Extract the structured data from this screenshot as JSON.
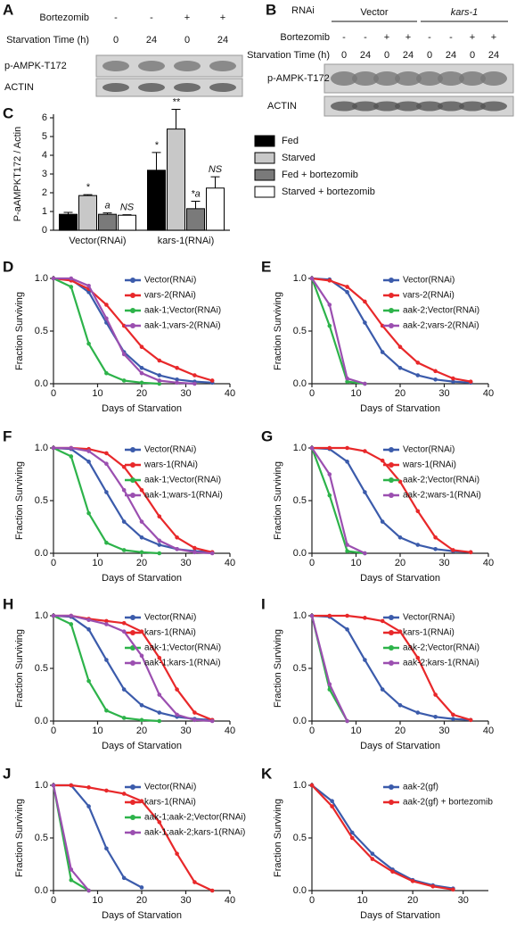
{
  "blots": [
    {
      "label": "A",
      "rows": [
        {
          "label": "Bortezomib",
          "cells": [
            "-",
            "-",
            "+",
            "+"
          ]
        },
        {
          "label": "Starvation Time (h)",
          "cells": [
            "0",
            "24",
            "0",
            "24"
          ]
        }
      ],
      "bands": [
        "p-AMPK-T172",
        "ACTIN"
      ]
    },
    {
      "label": "B",
      "rnai_label": "RNAi",
      "groups": [
        "Vector",
        "kars-1"
      ],
      "rows": [
        {
          "label": "Bortezomib",
          "cells": [
            "-",
            "-",
            "+",
            "+",
            "-",
            "-",
            "+",
            "+"
          ]
        },
        {
          "label": "Starvation Time (h)",
          "cells": [
            "0",
            "24",
            "0",
            "24",
            "0",
            "24",
            "0",
            "24"
          ]
        }
      ],
      "bands": [
        "p-AMPK-T172",
        "ACTIN"
      ]
    }
  ],
  "chart_data": [
    {
      "type": "bar",
      "label": "C",
      "ylabel": "P-aAMPKT172 / Actin",
      "categories": [
        "Vector(RNAi)",
        "kars-1(RNAi)"
      ],
      "ylim": [
        0,
        6
      ],
      "yticks": [
        0,
        1,
        2,
        3,
        4,
        5,
        6
      ],
      "series": [
        {
          "name": "Fed",
          "color": "#000000",
          "values": [
            0.85,
            3.2
          ],
          "errors": [
            0.1,
            0.95
          ],
          "annotations": [
            null,
            "*"
          ]
        },
        {
          "name": "Starved",
          "color": "#c8c8c8",
          "values": [
            1.85,
            5.4
          ],
          "errors": [
            0.05,
            1.05
          ],
          "annotations": [
            "*",
            "**"
          ]
        },
        {
          "name": "Fed + bortezomib",
          "color": "#7a7a7a",
          "values": [
            0.85,
            1.15
          ],
          "errors": [
            0.07,
            0.4
          ],
          "annotations": [
            "a",
            "*a"
          ]
        },
        {
          "name": "Starved + bortezomib",
          "color": "#ffffff",
          "values": [
            0.8,
            2.25
          ],
          "errors": [
            0.03,
            0.6
          ],
          "annotations": [
            "NS",
            "NS"
          ]
        }
      ]
    },
    {
      "type": "line",
      "label": "D",
      "xlabel": "Days of Starvation",
      "ylabel": "Fraction Surviving",
      "xlim": [
        0,
        40
      ],
      "xticks": [
        0,
        10,
        20,
        30,
        40
      ],
      "ylim": [
        0,
        1
      ],
      "yticks": [
        {
          "value": 0,
          "label": "0.0"
        },
        0.5,
        {
          "value": 1,
          "label": "1.0"
        }
      ],
      "x": [
        0,
        4,
        8,
        12,
        16,
        20,
        24,
        28,
        32,
        36
      ],
      "series": [
        {
          "name": "Vector(RNAi)",
          "color": "#3b5bab",
          "values": [
            1,
            0.99,
            0.87,
            0.58,
            0.3,
            0.15,
            0.08,
            0.04,
            0.02,
            0.01
          ]
        },
        {
          "name": "vars-2(RNAi)",
          "color": "#e8282a",
          "values": [
            1,
            0.98,
            0.9,
            0.75,
            0.55,
            0.35,
            0.22,
            0.15,
            0.08,
            0.03
          ]
        },
        {
          "name": "aak-1;Vector(RNAi)",
          "color": "#2db34a",
          "values": [
            1,
            0.92,
            0.38,
            0.1,
            0.03,
            0.01,
            0,
            null,
            null,
            null
          ]
        },
        {
          "name": "aak-1;vars-2(RNAi)",
          "color": "#9b4fb0",
          "values": [
            1,
            1,
            0.93,
            0.62,
            0.28,
            0.1,
            0.03,
            0.01,
            0,
            null
          ]
        }
      ]
    },
    {
      "type": "line",
      "label": "E",
      "xlabel": "Days of Starvation",
      "ylabel": "Fraction Surviving",
      "xlim": [
        0,
        40
      ],
      "xticks": [
        0,
        10,
        20,
        30,
        40
      ],
      "ylim": [
        0,
        1
      ],
      "yticks": [
        {
          "value": 0,
          "label": "0.0"
        },
        0.5,
        {
          "value": 1,
          "label": "1.0"
        }
      ],
      "x": [
        0,
        4,
        8,
        12,
        16,
        20,
        24,
        28,
        32,
        36
      ],
      "series": [
        {
          "name": "Vector(RNAi)",
          "color": "#3b5bab",
          "values": [
            1,
            0.99,
            0.87,
            0.58,
            0.3,
            0.15,
            0.08,
            0.04,
            0.02,
            0.01
          ]
        },
        {
          "name": "vars-2(RNAi)",
          "color": "#e8282a",
          "values": [
            1,
            0.98,
            0.92,
            0.78,
            0.55,
            0.35,
            0.2,
            0.12,
            0.05,
            0.02
          ]
        },
        {
          "name": "aak-2;Vector(RNAi)",
          "color": "#2db34a",
          "values": [
            1,
            0.55,
            0.02,
            0,
            null,
            null,
            null,
            null,
            null,
            null
          ]
        },
        {
          "name": "aak-2;vars-2(RNAi)",
          "color": "#9b4fb0",
          "values": [
            1,
            0.75,
            0.05,
            0,
            null,
            null,
            null,
            null,
            null,
            null
          ]
        }
      ]
    },
    {
      "type": "line",
      "label": "F",
      "xlabel": "Days of Starvation",
      "ylabel": "Fraction Surviving",
      "xlim": [
        0,
        40
      ],
      "xticks": [
        0,
        10,
        20,
        30,
        40
      ],
      "ylim": [
        0,
        1
      ],
      "yticks": [
        {
          "value": 0,
          "label": "0.0"
        },
        0.5,
        {
          "value": 1,
          "label": "1.0"
        }
      ],
      "x": [
        0,
        4,
        8,
        12,
        16,
        20,
        24,
        28,
        32,
        36
      ],
      "series": [
        {
          "name": "Vector(RNAi)",
          "color": "#3b5bab",
          "values": [
            1,
            0.99,
            0.87,
            0.58,
            0.3,
            0.15,
            0.08,
            0.04,
            0.02,
            0.01
          ]
        },
        {
          "name": "wars-1(RNAi)",
          "color": "#e8282a",
          "values": [
            1,
            1,
            0.99,
            0.95,
            0.82,
            0.6,
            0.35,
            0.15,
            0.05,
            0.01
          ]
        },
        {
          "name": "aak-1;Vector(RNAi)",
          "color": "#2db34a",
          "values": [
            1,
            0.92,
            0.38,
            0.1,
            0.03,
            0.01,
            0,
            null,
            null,
            null
          ]
        },
        {
          "name": "aak-1;wars-1(RNAi)",
          "color": "#9b4fb0",
          "values": [
            1,
            1,
            0.97,
            0.85,
            0.6,
            0.3,
            0.12,
            0.04,
            0.01,
            0
          ]
        }
      ]
    },
    {
      "type": "line",
      "label": "G",
      "xlabel": "Days of Starvation",
      "ylabel": "Fraction Surviving",
      "xlim": [
        0,
        40
      ],
      "xticks": [
        0,
        10,
        20,
        30,
        40
      ],
      "ylim": [
        0,
        1
      ],
      "yticks": [
        {
          "value": 0,
          "label": "0.0"
        },
        0.5,
        {
          "value": 1,
          "label": "1.0"
        }
      ],
      "x": [
        0,
        4,
        8,
        12,
        16,
        20,
        24,
        28,
        32,
        36
      ],
      "series": [
        {
          "name": "Vector(RNAi)",
          "color": "#3b5bab",
          "values": [
            1,
            0.99,
            0.87,
            0.58,
            0.3,
            0.15,
            0.08,
            0.04,
            0.02,
            0.01
          ]
        },
        {
          "name": "wars-1(RNAi)",
          "color": "#e8282a",
          "values": [
            1,
            1,
            1,
            0.97,
            0.88,
            0.68,
            0.4,
            0.15,
            0.03,
            0.01
          ]
        },
        {
          "name": "aak-2;Vector(RNAi)",
          "color": "#2db34a",
          "values": [
            1,
            0.55,
            0.02,
            0,
            null,
            null,
            null,
            null,
            null,
            null
          ]
        },
        {
          "name": "aak-2;wars-1(RNAi)",
          "color": "#9b4fb0",
          "values": [
            1,
            0.75,
            0.08,
            0,
            null,
            null,
            null,
            null,
            null,
            null
          ]
        }
      ]
    },
    {
      "type": "line",
      "label": "H",
      "xlabel": "Days of Starvation",
      "ylabel": "Fraction Surviving",
      "xlim": [
        0,
        40
      ],
      "xticks": [
        0,
        10,
        20,
        30,
        40
      ],
      "ylim": [
        0,
        1
      ],
      "yticks": [
        {
          "value": 0,
          "label": "0.0"
        },
        0.5,
        {
          "value": 1,
          "label": "1.0"
        }
      ],
      "x": [
        0,
        4,
        8,
        12,
        16,
        20,
        24,
        28,
        32,
        36
      ],
      "series": [
        {
          "name": "Vector(RNAi)",
          "color": "#3b5bab",
          "values": [
            1,
            0.99,
            0.87,
            0.58,
            0.3,
            0.15,
            0.08,
            0.04,
            0.02,
            0.01
          ]
        },
        {
          "name": "kars-1(RNAi)",
          "color": "#e8282a",
          "values": [
            1,
            1,
            0.97,
            0.95,
            0.93,
            0.85,
            0.6,
            0.3,
            0.08,
            0.01
          ]
        },
        {
          "name": "aak-1;Vector(RNAi)",
          "color": "#2db34a",
          "values": [
            1,
            0.92,
            0.38,
            0.1,
            0.03,
            0.01,
            0,
            null,
            null,
            null
          ]
        },
        {
          "name": "aak-1;kars-1(RNAi)",
          "color": "#9b4fb0",
          "values": [
            1,
            1,
            0.96,
            0.92,
            0.85,
            0.62,
            0.25,
            0.06,
            0.01,
            0
          ]
        }
      ]
    },
    {
      "type": "line",
      "label": "I",
      "xlabel": "Days of Starvation",
      "ylabel": "Fraction Surviving",
      "xlim": [
        0,
        40
      ],
      "xticks": [
        0,
        10,
        20,
        30,
        40
      ],
      "ylim": [
        0,
        1
      ],
      "yticks": [
        {
          "value": 0,
          "label": "0.0"
        },
        0.5,
        {
          "value": 1,
          "label": "1.0"
        }
      ],
      "x": [
        0,
        4,
        8,
        12,
        16,
        20,
        24,
        28,
        32,
        36
      ],
      "series": [
        {
          "name": "Vector(RNAi)",
          "color": "#3b5bab",
          "values": [
            1,
            0.99,
            0.87,
            0.58,
            0.3,
            0.15,
            0.08,
            0.04,
            0.02,
            0.01
          ]
        },
        {
          "name": "kars-1(RNAi)",
          "color": "#e8282a",
          "values": [
            1,
            1,
            1,
            0.98,
            0.95,
            0.85,
            0.6,
            0.25,
            0.06,
            0.01
          ]
        },
        {
          "name": "aak-2;Vector(RNAi)",
          "color": "#2db34a",
          "values": [
            1,
            0.3,
            0,
            null,
            null,
            null,
            null,
            null,
            null,
            null
          ]
        },
        {
          "name": "aak-2;kars-1(RNAi)",
          "color": "#9b4fb0",
          "values": [
            1,
            0.35,
            0,
            null,
            null,
            null,
            null,
            null,
            null,
            null
          ]
        }
      ]
    },
    {
      "type": "line",
      "label": "J",
      "xlabel": "Days of Starvation",
      "ylabel": "Fraction Surviving",
      "xlim": [
        0,
        40
      ],
      "xticks": [
        0,
        10,
        20,
        30,
        40
      ],
      "ylim": [
        0,
        1
      ],
      "yticks": [
        {
          "value": 0,
          "label": "0.0"
        },
        0.5,
        {
          "value": 1,
          "label": "1.0"
        }
      ],
      "x": [
        0,
        4,
        8,
        12,
        16,
        20,
        24,
        28,
        32,
        36
      ],
      "series": [
        {
          "name": "Vector(RNAi)",
          "color": "#3b5bab",
          "values": [
            1,
            1,
            0.8,
            0.4,
            0.12,
            0.03,
            null,
            null,
            null,
            null
          ]
        },
        {
          "name": "kars-1(RNAi)",
          "color": "#e8282a",
          "values": [
            1,
            1,
            0.98,
            0.95,
            0.92,
            0.85,
            0.65,
            0.35,
            0.08,
            0
          ]
        },
        {
          "name": "aak-1;aak-2;Vector(RNAi)",
          "color": "#2db34a",
          "values": [
            1,
            0.1,
            0,
            null,
            null,
            null,
            null,
            null,
            null,
            null
          ]
        },
        {
          "name": "aak-1;aak-2;kars-1(RNAi)",
          "color": "#9b4fb0",
          "values": [
            1,
            0.2,
            0,
            null,
            null,
            null,
            null,
            null,
            null,
            null
          ]
        }
      ]
    },
    {
      "type": "line",
      "label": "K",
      "xlabel": "Days of Starvation",
      "ylabel": "Fraction Surviving",
      "xlim": [
        0,
        35
      ],
      "xticks": [
        0,
        10,
        20,
        30
      ],
      "ylim": [
        0,
        1
      ],
      "yticks": [
        {
          "value": 0,
          "label": "0.0"
        },
        0.5,
        {
          "value": 1,
          "label": "1.0"
        }
      ],
      "x": [
        0,
        4,
        8,
        12,
        16,
        20,
        24,
        28
      ],
      "series": [
        {
          "name": "aak-2(gf)",
          "color": "#3b5bab",
          "values": [
            1,
            0.85,
            0.55,
            0.35,
            0.2,
            0.1,
            0.05,
            0.02
          ]
        },
        {
          "name": "aak-2(gf) + bortezomib",
          "color": "#e8282a",
          "values": [
            1,
            0.8,
            0.5,
            0.3,
            0.18,
            0.09,
            0.04,
            0.01
          ]
        }
      ]
    }
  ]
}
